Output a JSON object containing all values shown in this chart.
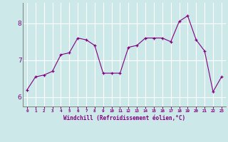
{
  "x": [
    0,
    1,
    2,
    3,
    4,
    5,
    6,
    7,
    8,
    9,
    10,
    11,
    12,
    13,
    14,
    15,
    16,
    17,
    18,
    19,
    20,
    21,
    22,
    23
  ],
  "y": [
    6.2,
    6.55,
    6.6,
    6.7,
    7.15,
    7.2,
    7.6,
    7.55,
    7.4,
    6.65,
    6.65,
    6.65,
    7.35,
    7.4,
    7.6,
    7.6,
    7.6,
    7.5,
    8.05,
    8.2,
    7.55,
    7.25,
    6.15,
    6.55
  ],
  "line_color": "#800080",
  "marker_color": "#800080",
  "background_color": "#cce8e8",
  "grid_color": "#ffffff",
  "xlabel": "Windchill (Refroidissement éolien,°C)",
  "xlabel_color": "#800080",
  "tick_color": "#800080",
  "spine_color": "#808080",
  "ylim": [
    5.75,
    8.55
  ],
  "xlim": [
    -0.5,
    23.5
  ],
  "yticks": [
    6,
    7,
    8
  ],
  "xtick_labels": [
    "0",
    "1",
    "2",
    "3",
    "4",
    "5",
    "6",
    "7",
    "8",
    "9",
    "10",
    "11",
    "12",
    "13",
    "14",
    "15",
    "16",
    "17",
    "18",
    "19",
    "20",
    "21",
    "22",
    "23"
  ]
}
